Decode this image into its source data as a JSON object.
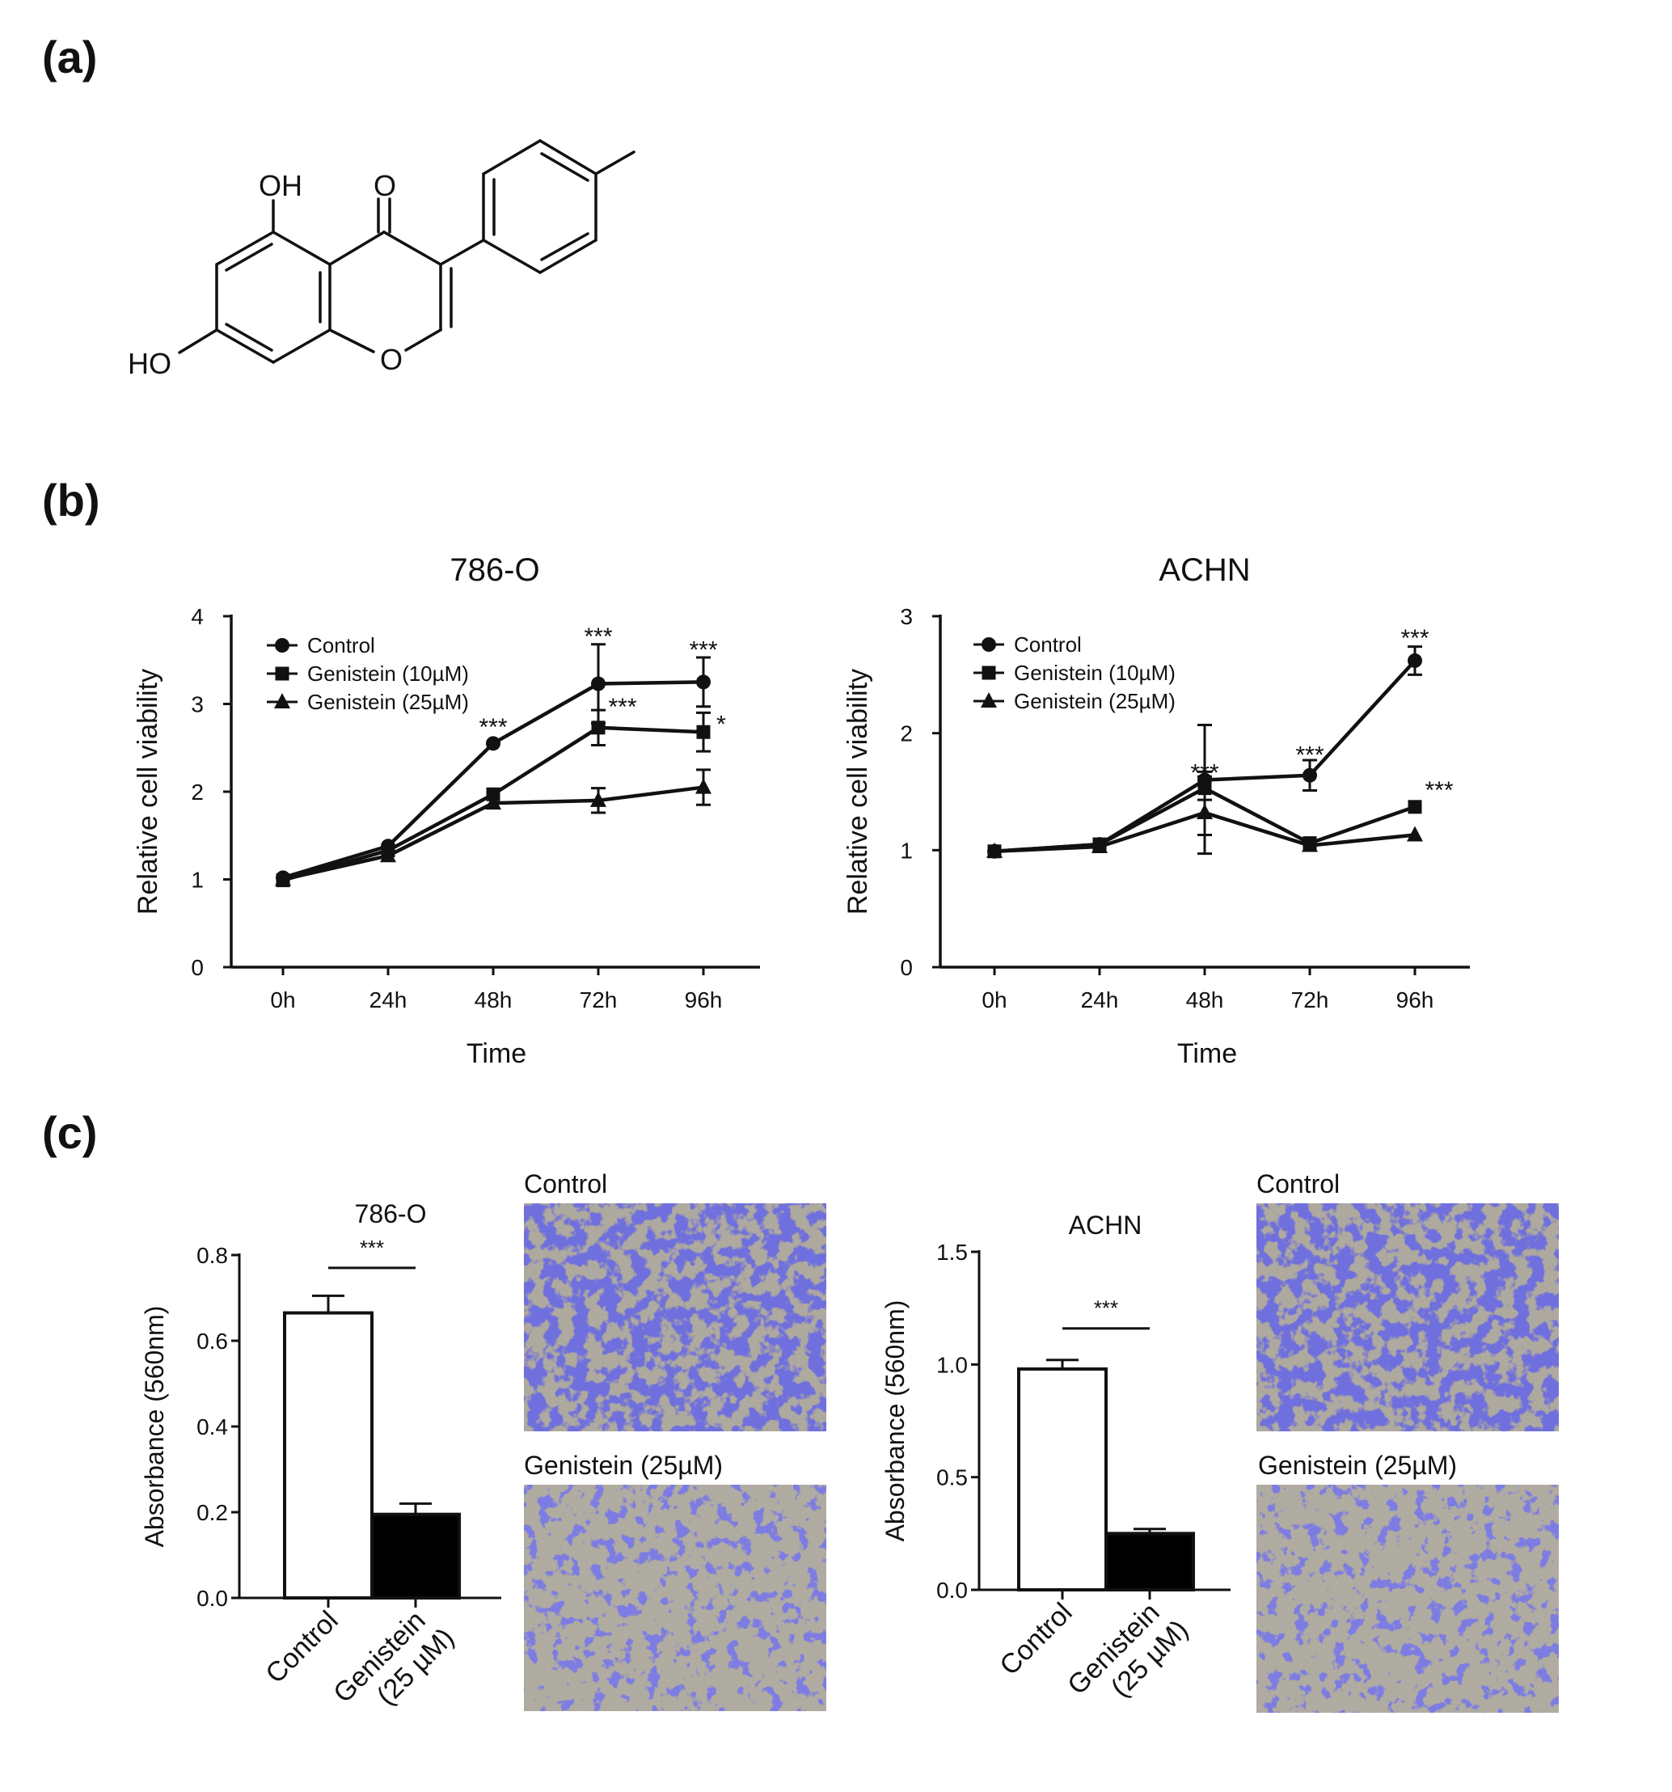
{
  "panels": {
    "a": {
      "label": "(a)"
    },
    "b": {
      "label": "(b)"
    },
    "c": {
      "label": "(c)"
    }
  },
  "structure": {
    "oh_top": "OH",
    "o_ketone": "O",
    "ho_left": "HO",
    "o_ring": "O"
  },
  "chart_data": [
    {
      "id": "b-786o",
      "type": "line",
      "title": "786-O",
      "xlabel": "Time",
      "ylabel": "Relative cell viability",
      "categories": [
        "0h",
        "24h",
        "48h",
        "72h",
        "96h"
      ],
      "ylim": [
        0,
        4
      ],
      "yticks": [
        "0",
        "1",
        "2",
        "3",
        "4"
      ],
      "legend_placement": "top-left",
      "series": [
        {
          "name": "Control",
          "marker": "circle",
          "values": [
            1.02,
            1.38,
            2.55,
            3.23,
            3.25
          ],
          "errors": [
            0.04,
            0.05,
            0.03,
            0.45,
            0.28
          ]
        },
        {
          "name": "Genistein (10µM)",
          "marker": "square",
          "values": [
            0.99,
            1.33,
            1.97,
            2.73,
            2.68
          ],
          "errors": [
            0.04,
            0.05,
            0.05,
            0.2,
            0.22
          ]
        },
        {
          "name": "Genistein (25µM)",
          "marker": "triangle",
          "values": [
            1.0,
            1.27,
            1.87,
            1.9,
            2.05
          ],
          "errors": [
            0.04,
            0.06,
            0.05,
            0.14,
            0.2
          ]
        }
      ],
      "annotations": [
        {
          "text": "***",
          "x": "48h",
          "y": 2.72
        },
        {
          "text": "***",
          "x": "72h",
          "y": 3.75
        },
        {
          "text": "***",
          "x": "72h",
          "y": 2.95
        },
        {
          "text": "***",
          "x": "96h",
          "y": 3.6
        },
        {
          "text": "*",
          "x": "96h",
          "y": 2.75
        }
      ]
    },
    {
      "id": "b-achn",
      "type": "line",
      "title": "ACHN",
      "xlabel": "Time",
      "ylabel": "Relative cell viability",
      "categories": [
        "0h",
        "24h",
        "48h",
        "72h",
        "96h"
      ],
      "ylim": [
        0,
        3
      ],
      "yticks": [
        "0",
        "1",
        "2",
        "3"
      ],
      "legend_placement": "top-left",
      "series": [
        {
          "name": "Control",
          "marker": "circle",
          "values": [
            0.99,
            1.05,
            1.6,
            1.64,
            2.62
          ],
          "errors": [
            0.03,
            0.03,
            0.47,
            0.13,
            0.12
          ]
        },
        {
          "name": "Genistein (10µM)",
          "marker": "square",
          "values": [
            0.99,
            1.05,
            1.53,
            1.06,
            1.37
          ],
          "errors": [
            0.03,
            0.03,
            0.1,
            0.04,
            0.04
          ]
        },
        {
          "name": "Genistein (25µM)",
          "marker": "triangle",
          "values": [
            0.99,
            1.03,
            1.32,
            1.04,
            1.13
          ],
          "errors": [
            0.03,
            0.03,
            0.35,
            0.04,
            0.03
          ]
        }
      ],
      "annotations": [
        {
          "text": "***",
          "x": "48h",
          "y": 1.65
        },
        {
          "text": "***",
          "x": "72h",
          "y": 1.8
        },
        {
          "text": "***",
          "x": "96h",
          "y": 2.8
        },
        {
          "text": "***",
          "x": "96h",
          "y": 1.5
        }
      ]
    },
    {
      "id": "c-786o",
      "type": "bar",
      "title": "786-O",
      "ylabel": "Absorbance (560nm)",
      "categories": [
        "Control",
        "Genistein (25 µM)"
      ],
      "category_lines": [
        [
          "Control"
        ],
        [
          "Genistein",
          "(25 µM)"
        ]
      ],
      "values": [
        0.665,
        0.195
      ],
      "errors": [
        0.04,
        0.025
      ],
      "bar_colors": [
        "#ffffff",
        "#000000"
      ],
      "ylim": [
        0,
        0.8
      ],
      "yticks": [
        "0.0",
        "0.2",
        "0.4",
        "0.6",
        "0.8"
      ],
      "significance": "***"
    },
    {
      "id": "c-achn",
      "type": "bar",
      "title": "ACHN",
      "ylabel": "Absorbance (560nm)",
      "categories": [
        "Control",
        "Genistein (25 µM)"
      ],
      "category_lines": [
        [
          "Control"
        ],
        [
          "Genistein",
          "(25 µM)"
        ]
      ],
      "values": [
        0.98,
        0.25
      ],
      "errors": [
        0.04,
        0.02
      ],
      "bar_colors": [
        "#ffffff",
        "#000000"
      ],
      "ylim": [
        0,
        1.5
      ],
      "yticks": [
        "0.0",
        "0.5",
        "1.0",
        "1.5"
      ],
      "significance": "***"
    }
  ],
  "micrographs": [
    {
      "id": "786o-control",
      "label": "Control",
      "density": "high"
    },
    {
      "id": "786o-genistein",
      "label": "Genistein (25µM)",
      "density": "low"
    },
    {
      "id": "achn-control",
      "label": "Control",
      "density": "high"
    },
    {
      "id": "achn-genistein",
      "label": "Genistein (25µM)",
      "density": "low"
    }
  ],
  "colors": {
    "ink": "#111111",
    "stain": "#3c3cc8",
    "stain_dark": "#2626a8",
    "membrane": "#a6a094"
  }
}
